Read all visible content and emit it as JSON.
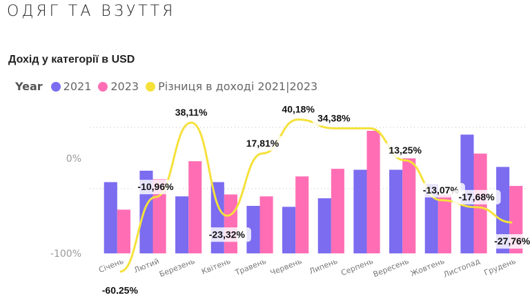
{
  "page": {
    "title": "ОДЯГ ТА ВЗУТТЯ"
  },
  "chart_data": {
    "type": "bar",
    "title": "Дохід у категорії в USD",
    "legend_title": "Year",
    "categories": [
      "Січень",
      "Лютий",
      "Березень",
      "Квітень",
      "Травень",
      "Червень",
      "Липень",
      "Серпень",
      "Вересень",
      "Жовтень",
      "Листопад",
      "Грудень"
    ],
    "y_tick_labels": [
      "0%",
      "-100%"
    ],
    "series": [
      {
        "name": "2021",
        "color": "#7b6cf0",
        "values": [
          -25,
          -13,
          -40,
          -25,
          -50,
          -51,
          -42,
          -12,
          -12,
          -27,
          25,
          -9
        ]
      },
      {
        "name": "2023",
        "color": "#ff6eb4",
        "values": [
          -54,
          -22,
          -3,
          -38,
          -40,
          -19,
          -11,
          29,
          0,
          -38,
          5,
          -29
        ]
      }
    ],
    "line": {
      "name": "Різниця в доході 2021|2023",
      "color": "#f5e13a",
      "values": [
        -60.25,
        -10.96,
        38.11,
        -23.32,
        17.81,
        40.18,
        34.38,
        34.38,
        13.25,
        -13.07,
        -17.68,
        -27.76
      ],
      "labels": [
        "-60,25%",
        "-10,96%",
        "38,11%",
        "-23,32%",
        "17,81%",
        "40,18%",
        "34,38%",
        "",
        "13,25%",
        "-13,07%",
        "-17,68%",
        "-27,76%"
      ]
    }
  }
}
